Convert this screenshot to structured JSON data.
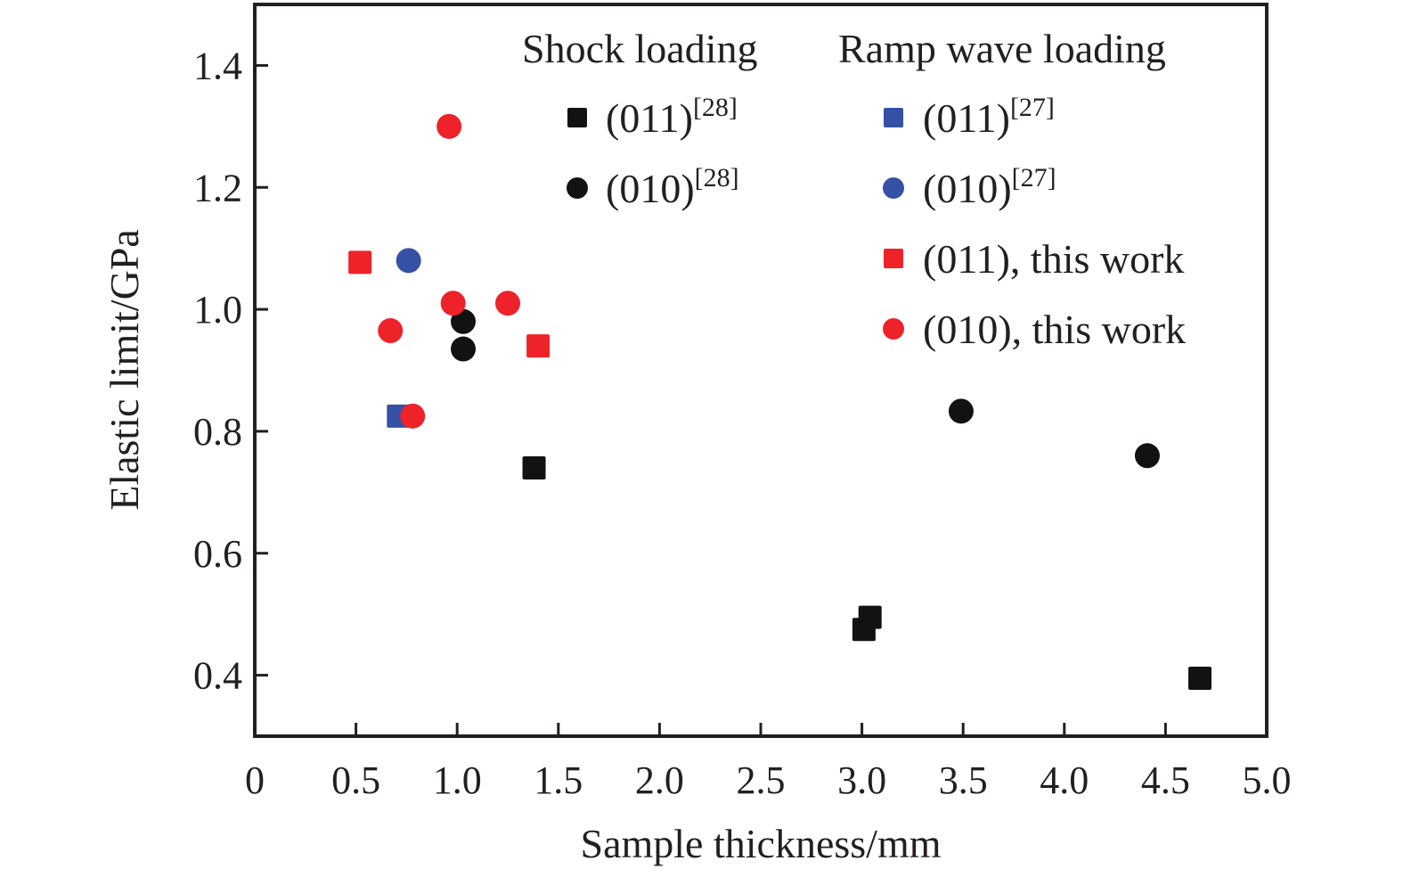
{
  "chart_data": {
    "type": "scatter",
    "title": "",
    "xlabel": "Sample thickness/mm",
    "ylabel": "Elastic limit/GPa",
    "xlim": [
      0,
      5.0
    ],
    "ylim": [
      0.3,
      1.5
    ],
    "x_ticks": [
      0,
      0.5,
      1.0,
      1.5,
      2.0,
      2.5,
      3.0,
      3.5,
      4.0,
      4.5,
      5.0
    ],
    "x_tick_labels": [
      "0",
      "0.5",
      "1.0",
      "1.5",
      "2.0",
      "2.5",
      "3.0",
      "3.5",
      "4.0",
      "4.5",
      "5.0"
    ],
    "y_ticks": [
      0.4,
      0.6,
      0.8,
      1.0,
      1.2,
      1.4
    ],
    "y_tick_labels": [
      "0.4",
      "0.6",
      "0.8",
      "1.0",
      "1.2",
      "1.4"
    ],
    "grid": false,
    "legend_position": "top-right",
    "legend_groups": [
      {
        "heading": "Shock loading",
        "entries": [
          0,
          1
        ]
      },
      {
        "heading": "Ramp wave loading",
        "entries": [
          2,
          3,
          4,
          5
        ]
      }
    ],
    "series": [
      {
        "name": "(011) [28]",
        "label": "(011)",
        "ref": "[28]",
        "marker": "square",
        "color": "#111312",
        "points": [
          [
            1.38,
            0.74
          ],
          [
            3.04,
            0.495
          ],
          [
            3.01,
            0.475
          ],
          [
            4.67,
            0.395
          ]
        ]
      },
      {
        "name": "(010) [28]",
        "label": "(010)",
        "ref": "[28]",
        "marker": "circle",
        "color": "#111312",
        "points": [
          [
            1.03,
            0.98
          ],
          [
            1.03,
            0.935
          ],
          [
            3.49,
            0.833
          ],
          [
            4.41,
            0.76
          ]
        ]
      },
      {
        "name": "(011) [27]",
        "label": "(011)",
        "ref": "[27]",
        "marker": "square",
        "color": "#3451a6",
        "points": [
          [
            0.71,
            0.825
          ]
        ]
      },
      {
        "name": "(010) [27]",
        "label": "(010)",
        "ref": "[27]",
        "marker": "circle",
        "color": "#3451a6",
        "points": [
          [
            0.76,
            1.08
          ]
        ]
      },
      {
        "name": "(011), this work",
        "label": "(011), this work",
        "ref": "",
        "marker": "square",
        "color": "#ed2329",
        "points": [
          [
            0.52,
            1.077
          ],
          [
            1.4,
            0.94
          ]
        ]
      },
      {
        "name": "(010), this work",
        "label": "(010), this work",
        "ref": "",
        "marker": "circle",
        "color": "#ed2329",
        "points": [
          [
            0.96,
            1.3
          ],
          [
            0.98,
            1.01
          ],
          [
            1.25,
            1.01
          ],
          [
            0.67,
            0.965
          ],
          [
            0.78,
            0.825
          ]
        ]
      }
    ]
  }
}
